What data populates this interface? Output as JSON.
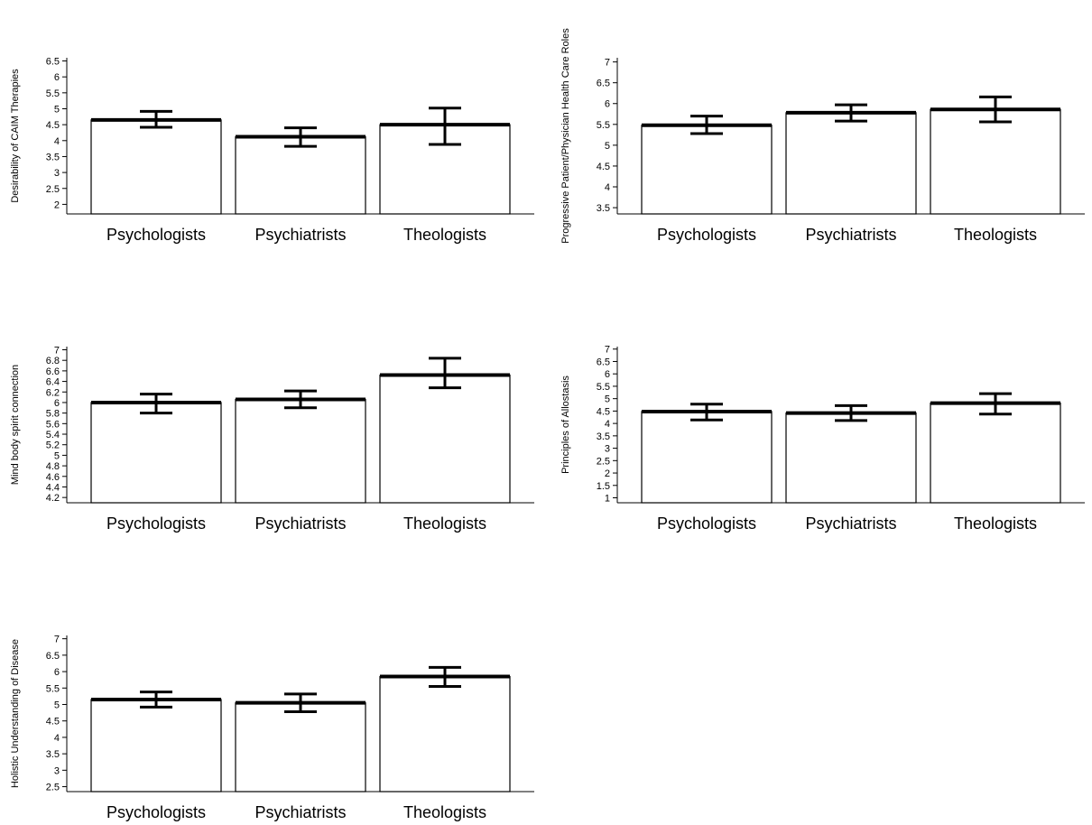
{
  "chart_data": [
    {
      "type": "bar",
      "categories": [
        "Psychologists",
        "Psychiatrists",
        "Theologists"
      ],
      "values": [
        4.65,
        4.12,
        4.5
      ],
      "error_low": [
        4.42,
        3.82,
        3.88
      ],
      "error_high": [
        4.92,
        4.4,
        5.02
      ],
      "ylabel": "Desirability of CAIM Therapies",
      "ylim": [
        1.7,
        6.6
      ],
      "yticks": [
        2,
        2.5,
        3,
        3.5,
        4,
        4.5,
        5,
        5.5,
        6,
        6.5
      ],
      "ytick_labels": [
        "2",
        "2.5",
        "3",
        "3.5",
        "4",
        "4.5",
        "5",
        "5.5",
        "6",
        "6.5"
      ]
    },
    {
      "type": "bar",
      "categories": [
        "Psychologists",
        "Psychiatrists",
        "Theologists"
      ],
      "values": [
        5.48,
        5.78,
        5.86
      ],
      "error_low": [
        5.28,
        5.58,
        5.56
      ],
      "error_high": [
        5.7,
        5.97,
        6.16
      ],
      "ylabel": "Progressive Patient/Physician Health Care Roles",
      "ylim": [
        3.35,
        7.1
      ],
      "yticks": [
        3.5,
        4,
        4.5,
        5,
        5.5,
        6,
        6.5,
        7
      ],
      "ytick_labels": [
        "3.5",
        "4",
        "4.5",
        "5",
        "5.5",
        "6",
        "6.5",
        "7"
      ]
    },
    {
      "type": "bar",
      "categories": [
        "Psychologists",
        "Psychiatrists",
        "Theologists"
      ],
      "values": [
        6.0,
        6.06,
        6.52
      ],
      "error_low": [
        5.8,
        5.9,
        6.28
      ],
      "error_high": [
        6.16,
        6.22,
        6.84
      ],
      "ylabel": "Mind body spirit connection",
      "ylim": [
        4.1,
        7.06
      ],
      "yticks": [
        4.2,
        4.4,
        4.6,
        4.8,
        5,
        5.2,
        5.4,
        5.6,
        5.8,
        6,
        6.2,
        6.4,
        6.6,
        6.8,
        7
      ],
      "ytick_labels": [
        "4.2",
        "4.4",
        "4.6",
        "4.8",
        "5",
        "5.2",
        "5.4",
        "5.6",
        "5.8",
        "6",
        "6.2",
        "6.4",
        "6.6",
        "6.8",
        "7"
      ]
    },
    {
      "type": "bar",
      "categories": [
        "Psychologists",
        "Psychiatrists",
        "Theologists"
      ],
      "values": [
        4.48,
        4.42,
        4.82
      ],
      "error_low": [
        4.14,
        4.12,
        4.38
      ],
      "error_high": [
        4.78,
        4.72,
        5.2
      ],
      "ylabel": "Principles of Allostasis",
      "ylim": [
        0.8,
        7.1
      ],
      "yticks": [
        1,
        1.5,
        2,
        2.5,
        3,
        3.5,
        4,
        4.5,
        5,
        5.5,
        6,
        6.5,
        7
      ],
      "ytick_labels": [
        "1",
        "1.5",
        "2",
        "2.5",
        "3",
        "3.5",
        "4",
        "4.5",
        "5",
        "5.5",
        "6",
        "6.5",
        "7"
      ]
    },
    {
      "type": "bar",
      "categories": [
        "Psychologists",
        "Psychiatrists",
        "Theologists"
      ],
      "values": [
        5.15,
        5.05,
        5.85
      ],
      "error_low": [
        4.92,
        4.78,
        5.55
      ],
      "error_high": [
        5.38,
        5.32,
        6.13
      ],
      "ylabel": "Holistic Understanding of Disease",
      "ylim": [
        2.35,
        7.1
      ],
      "yticks": [
        2.5,
        3,
        3.5,
        4,
        4.5,
        5,
        5.5,
        6,
        6.5,
        7
      ],
      "ytick_labels": [
        "2.5",
        "3",
        "3.5",
        "4",
        "4.5",
        "5",
        "5.5",
        "6",
        "6.5",
        "7"
      ]
    }
  ]
}
